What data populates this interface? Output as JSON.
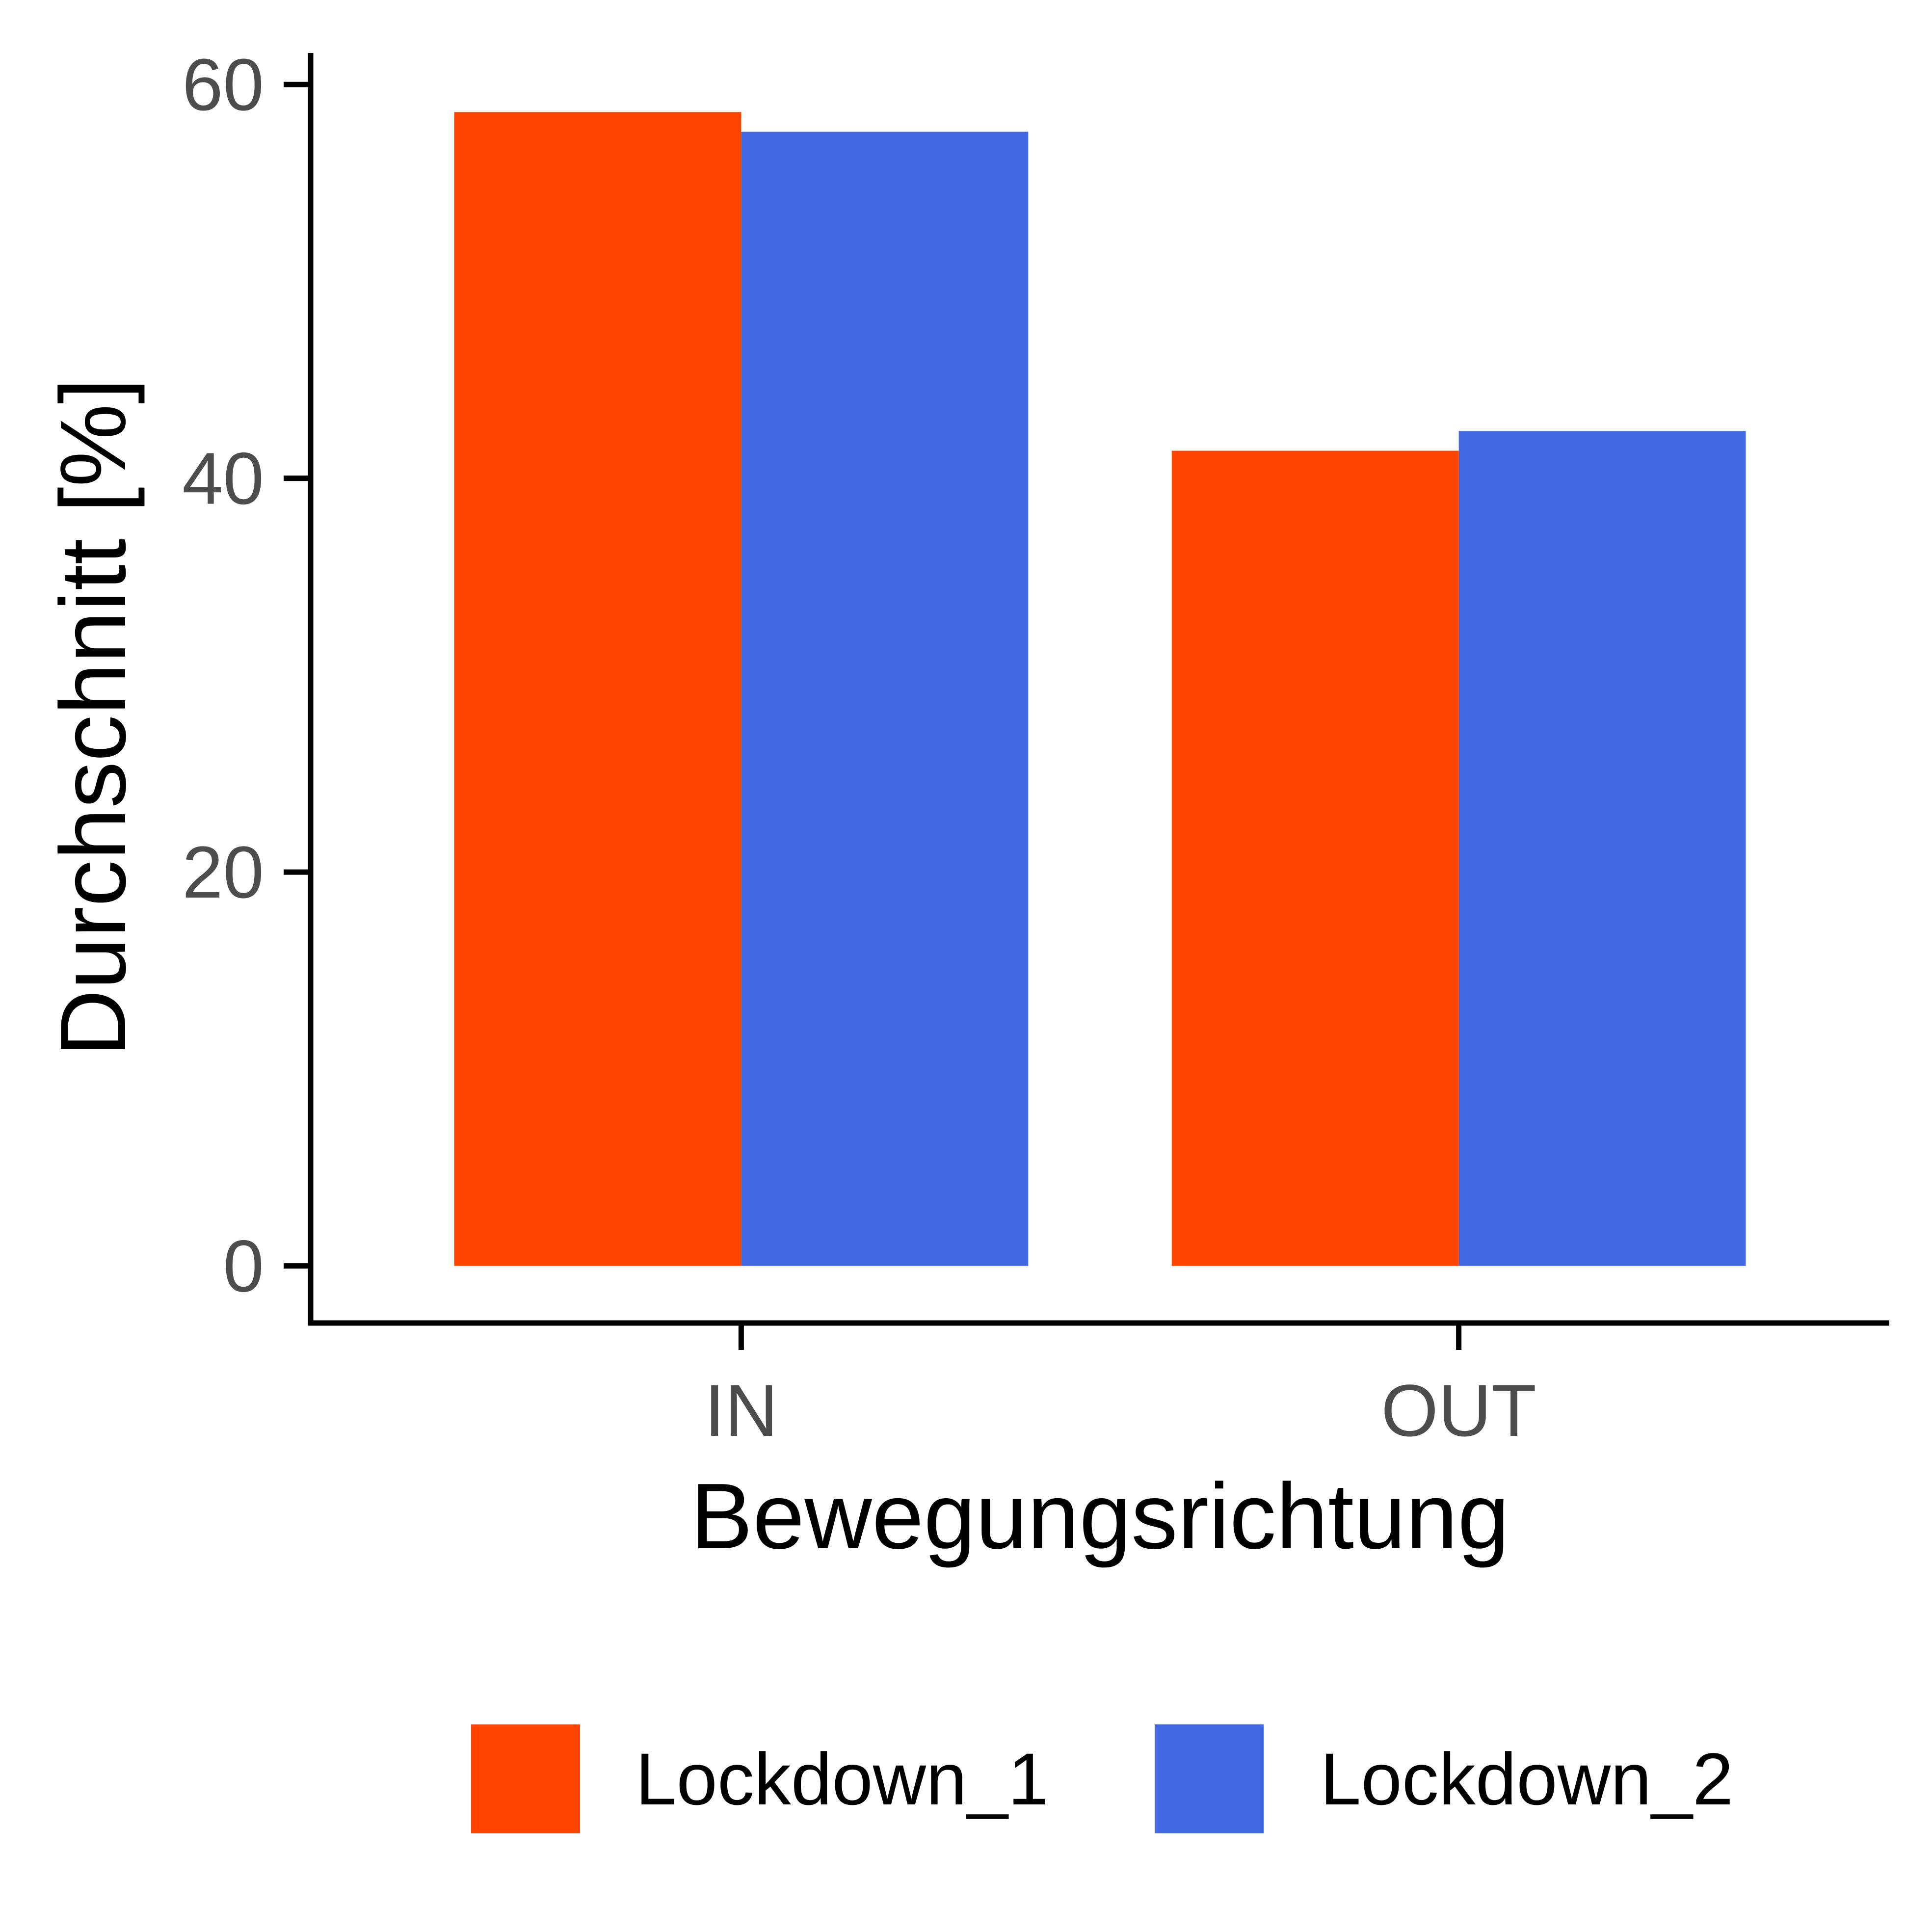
{
  "chart_data": {
    "type": "bar",
    "title": "",
    "xlabel": "Bewegungsrichtung",
    "ylabel": "Durchschnitt [%]",
    "categories": [
      "IN",
      "OUT"
    ],
    "series": [
      {
        "name": "Lockdown_1",
        "values": [
          58.6,
          41.4
        ],
        "color": "#FF4500"
      },
      {
        "name": "Lockdown_2",
        "values": [
          57.6,
          42.4
        ],
        "color": "#4169E1"
      }
    ],
    "ylim": [
      -2.9,
      61.6
    ],
    "yticks": [
      0,
      20,
      40,
      60
    ],
    "grid": false,
    "legend": {
      "position": "bottom",
      "entries": [
        "Lockdown_1",
        "Lockdown_2"
      ]
    }
  }
}
